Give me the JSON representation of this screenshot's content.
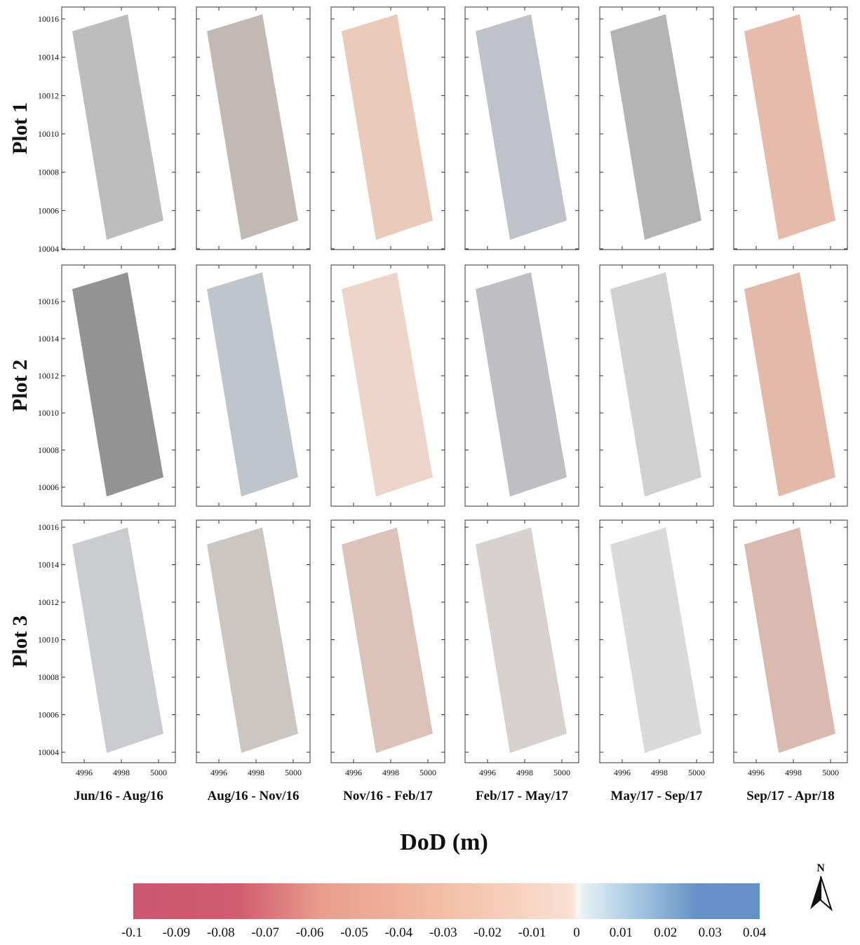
{
  "rows": [
    {
      "label": "Plot 1",
      "yticks": [
        10004,
        10006,
        10008,
        10010,
        10012,
        10014,
        10016
      ]
    },
    {
      "label": "Plot 2",
      "yticks": [
        10006,
        10008,
        10010,
        10012,
        10014,
        10016
      ]
    },
    {
      "label": "Plot 3",
      "yticks": [
        10004,
        10006,
        10008,
        10010,
        10012,
        10014,
        10016
      ]
    }
  ],
  "columns": [
    "Jun/16 - Aug/16",
    "Aug/16 - Nov/16",
    "Nov/16 - Feb/17",
    "Feb/17 - May/17",
    "May/17 - Sep/17",
    "Sep/17 - Apr/18"
  ],
  "xticks": [
    4996,
    4998,
    5000
  ],
  "colorbar": {
    "title": "DoD (m)",
    "ticks": [
      -0.1,
      -0.09,
      -0.08,
      -0.07,
      -0.06,
      -0.05,
      -0.04,
      -0.03,
      -0.02,
      -0.01,
      0,
      0.01,
      0.02,
      0.03,
      0.04
    ]
  },
  "north": "N"
}
